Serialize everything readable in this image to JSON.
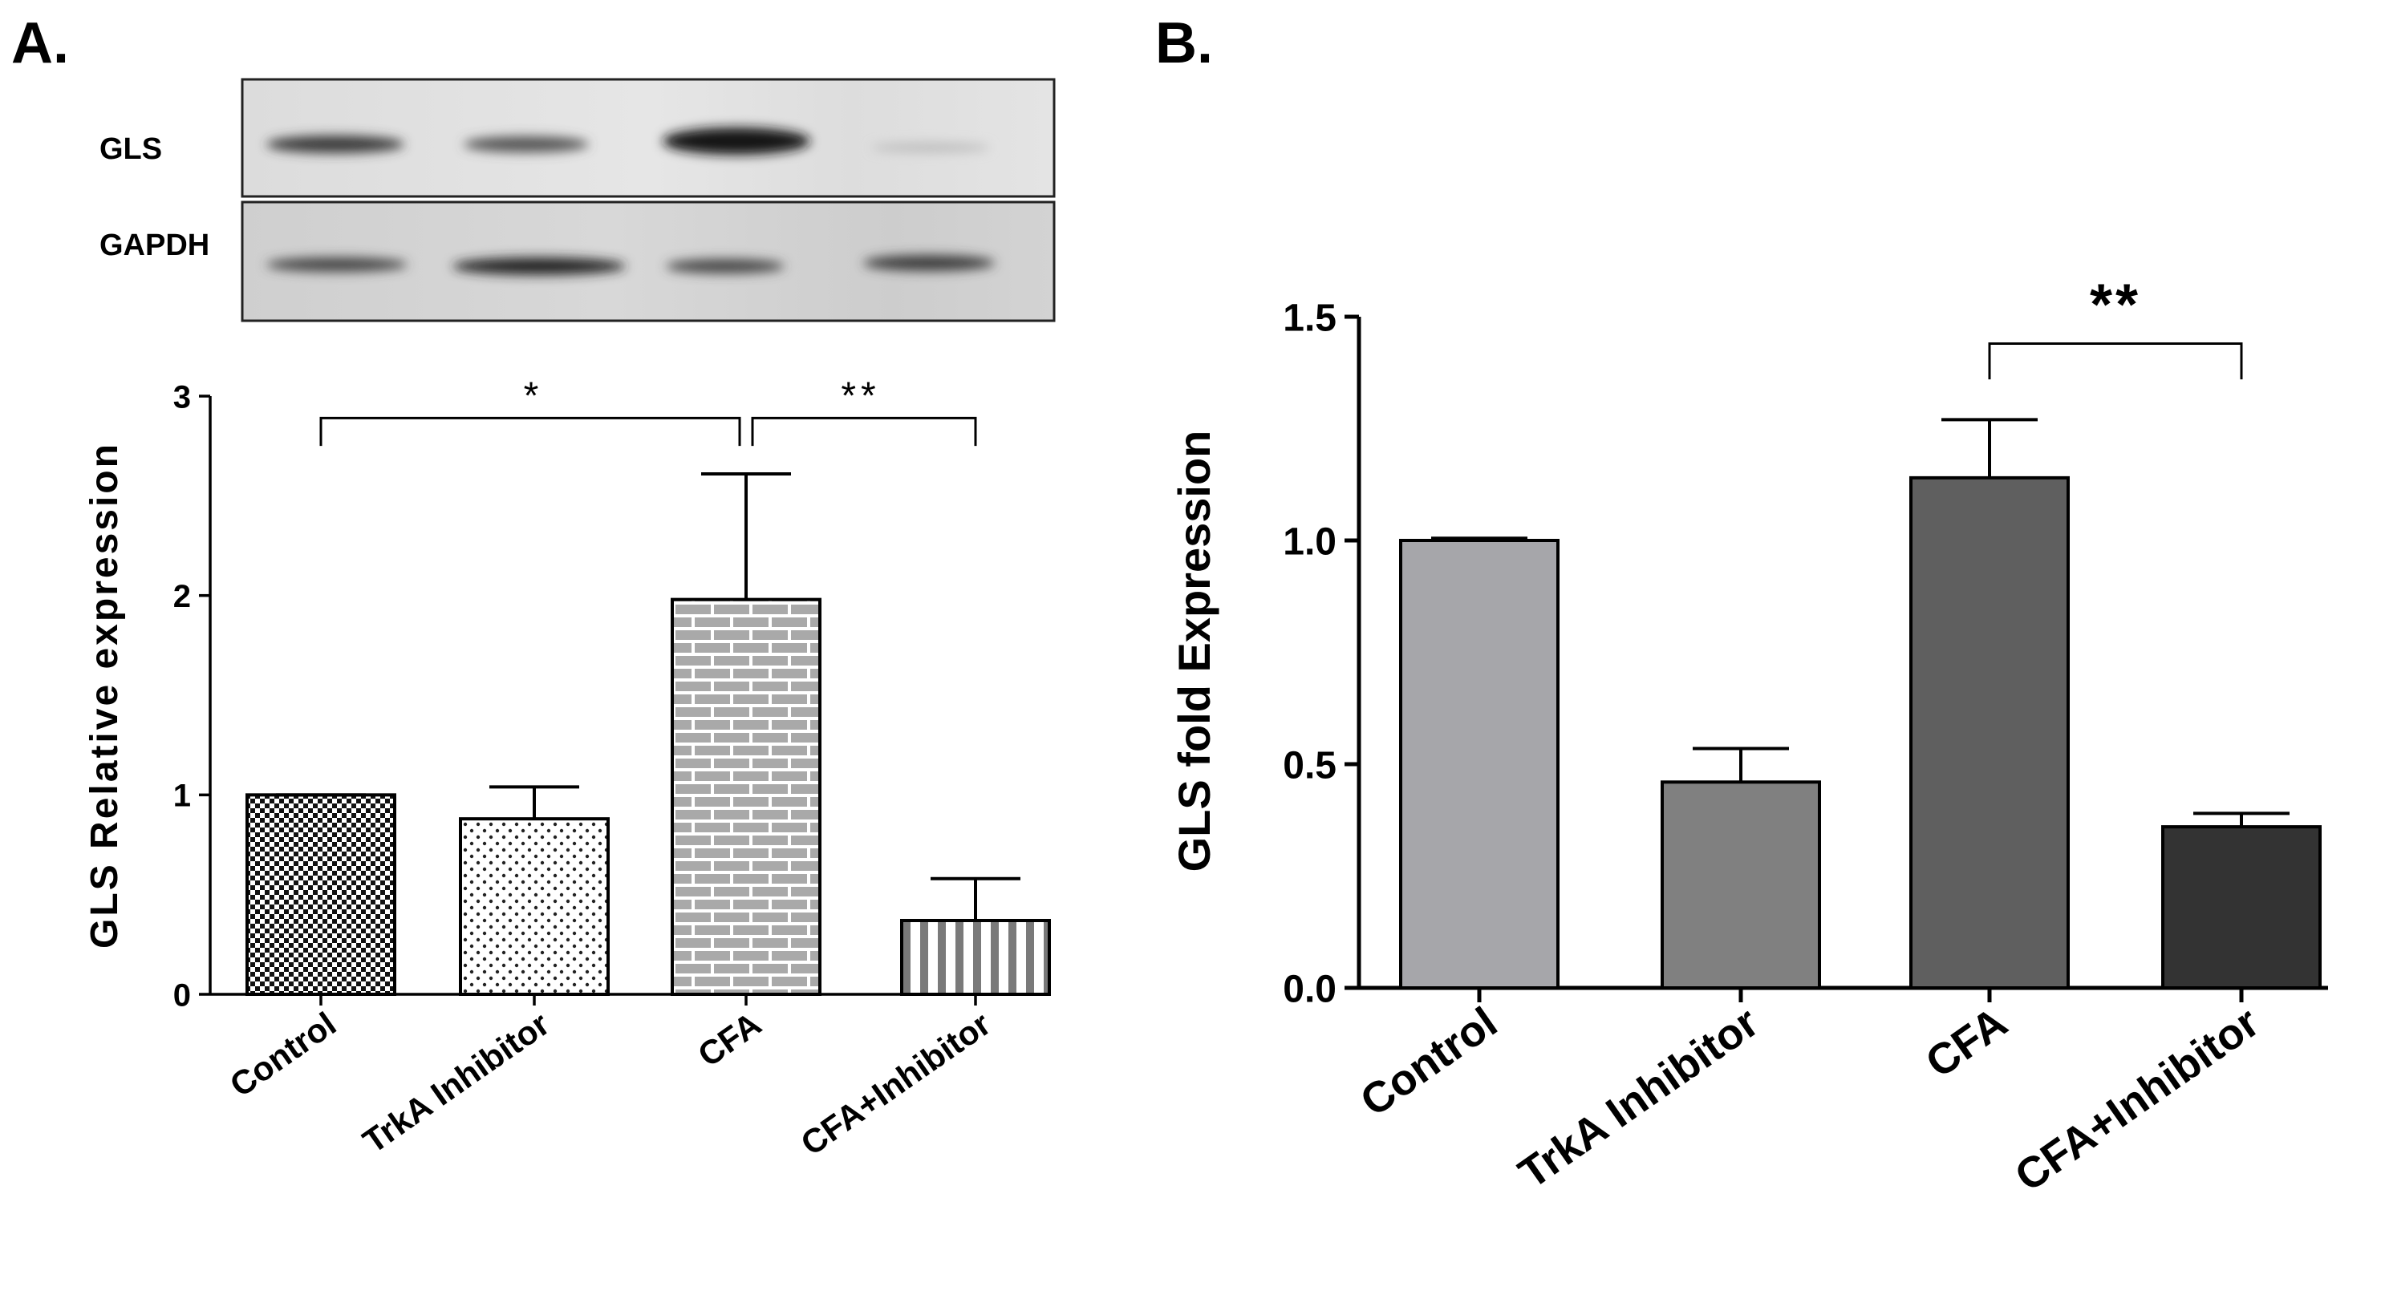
{
  "panels": {
    "a_label": "A.",
    "b_label": "B."
  },
  "blot": {
    "row1_label": "GLS",
    "row2_label": "GAPDH"
  },
  "colors": {
    "axis": "#000000",
    "b_bars": [
      "#a6a6aa",
      "#808080",
      "#5f5f5f",
      "#333333"
    ]
  },
  "chart_data": [
    {
      "type": "bar",
      "categories": [
        "Control",
        "TrkA Inhibitor",
        "CFA",
        "CFA+Inhibitor"
      ],
      "values": [
        1.0,
        0.88,
        1.98,
        0.37
      ],
      "errors": [
        0.0,
        0.16,
        0.63,
        0.21
      ],
      "ylabel": "GLS Relative expression",
      "ylim": [
        0,
        3
      ],
      "yticks": [
        0,
        1,
        2,
        3
      ],
      "ytick_labels": [
        "0",
        "1",
        "2",
        "3"
      ],
      "patterns": [
        "checker",
        "dots",
        "bricks",
        "vstripes"
      ],
      "significance": [
        {
          "from": 0,
          "to": 2,
          "label": "*"
        },
        {
          "from": 2,
          "to": 3,
          "label": "**"
        }
      ]
    },
    {
      "type": "bar",
      "categories": [
        "Control",
        "TrkA Inhibitor",
        "CFA",
        "CFA+Inhibitor"
      ],
      "values": [
        1.0,
        0.46,
        1.14,
        0.36
      ],
      "errors": [
        0.005,
        0.075,
        0.13,
        0.03
      ],
      "ylabel": "GLS fold Expression",
      "ylim": [
        0,
        1.5
      ],
      "yticks": [
        0,
        0.5,
        1.0,
        1.5
      ],
      "ytick_labels": [
        "0.0",
        "0.5",
        "1.0",
        "1.5"
      ],
      "significance": [
        {
          "from": 2,
          "to": 3,
          "label": "**"
        }
      ]
    }
  ]
}
